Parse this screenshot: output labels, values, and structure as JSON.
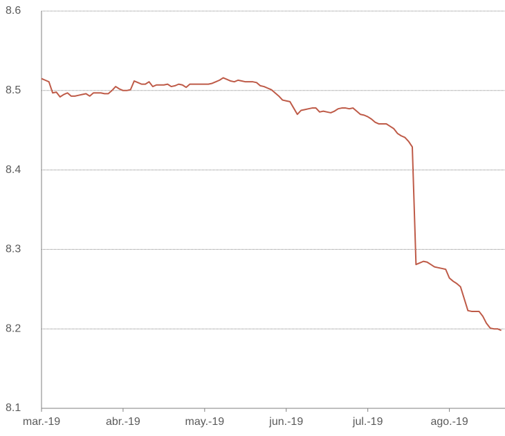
{
  "chart_data": {
    "type": "line",
    "categories": [
      "mar.-19",
      null,
      null,
      null,
      null,
      null,
      null,
      null,
      null,
      null,
      null,
      null,
      null,
      null,
      null,
      null,
      null,
      null,
      null,
      null,
      null,
      null,
      "abr.-19",
      null,
      null,
      null,
      null,
      null,
      null,
      null,
      null,
      null,
      null,
      null,
      null,
      null,
      null,
      null,
      null,
      null,
      null,
      null,
      null,
      null,
      "may.-19",
      null,
      null,
      null,
      null,
      null,
      null,
      null,
      null,
      null,
      null,
      null,
      null,
      null,
      null,
      null,
      null,
      null,
      null,
      null,
      null,
      null,
      "jun.-19",
      null,
      null,
      null,
      null,
      null,
      null,
      null,
      null,
      null,
      null,
      null,
      null,
      null,
      null,
      null,
      null,
      null,
      null,
      null,
      null,
      null,
      "jul.-19",
      null,
      null,
      null,
      null,
      null,
      null,
      null,
      null,
      null,
      null,
      null,
      null,
      null,
      null,
      null,
      null,
      null,
      null,
      null,
      null,
      null,
      "ago.-19",
      null,
      null,
      null,
      null,
      null,
      null,
      null,
      null,
      null,
      null,
      null,
      null,
      null,
      null
    ],
    "values": [
      8.515,
      8.513,
      8.511,
      8.497,
      8.498,
      8.492,
      8.495,
      8.497,
      8.493,
      8.493,
      8.494,
      8.495,
      8.496,
      8.493,
      8.497,
      8.497,
      8.497,
      8.496,
      8.496,
      8.5,
      8.505,
      8.502,
      8.5,
      8.5,
      8.501,
      8.512,
      8.51,
      8.508,
      8.508,
      8.511,
      8.505,
      8.507,
      8.507,
      8.507,
      8.508,
      8.505,
      8.506,
      8.508,
      8.507,
      8.504,
      8.508,
      8.508,
      8.508,
      8.508,
      8.508,
      8.508,
      8.509,
      8.511,
      8.513,
      8.516,
      8.514,
      8.512,
      8.511,
      8.513,
      8.512,
      8.511,
      8.511,
      8.511,
      8.51,
      8.506,
      8.505,
      8.503,
      8.501,
      8.497,
      8.493,
      8.488,
      8.487,
      8.486,
      8.478,
      8.47,
      8.475,
      8.476,
      8.477,
      8.478,
      8.478,
      8.473,
      8.474,
      8.473,
      8.472,
      8.474,
      8.477,
      8.478,
      8.478,
      8.477,
      8.478,
      8.474,
      8.47,
      8.469,
      8.467,
      8.464,
      8.46,
      8.458,
      8.458,
      8.458,
      8.455,
      8.452,
      8.446,
      8.443,
      8.441,
      8.436,
      8.429,
      8.281,
      8.283,
      8.285,
      8.284,
      8.281,
      8.278,
      8.277,
      8.276,
      8.275,
      8.264,
      8.26,
      8.257,
      8.253,
      8.238,
      8.223,
      8.222,
      8.222,
      8.222,
      8.216,
      8.207,
      8.201,
      8.2,
      8.2,
      8.198
    ],
    "color": "#be5a47",
    "ylim": [
      8.1,
      8.6
    ],
    "yticks": [
      8.1,
      8.2,
      8.3,
      8.4,
      8.5,
      8.6
    ],
    "grid": true
  }
}
